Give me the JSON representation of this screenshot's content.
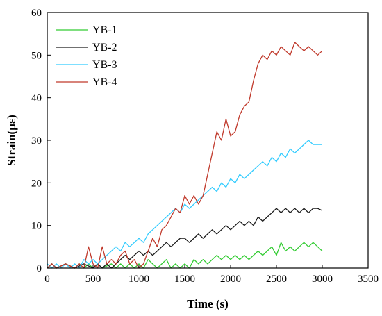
{
  "chart_data": {
    "type": "line",
    "xlabel": "Time (s)",
    "ylabel": "Strain(με)",
    "xlim": [
      0,
      3500
    ],
    "ylim": [
      0,
      60
    ],
    "xticks": [
      0,
      500,
      1000,
      1500,
      2000,
      2500,
      3000,
      3500
    ],
    "yticks": [
      0,
      10,
      20,
      30,
      40,
      50,
      60
    ],
    "grid": false,
    "legend_position": "top-left",
    "series": [
      {
        "name": "YB-1",
        "color": "#33cc33",
        "x": [
          0,
          50,
          100,
          200,
          300,
          350,
          400,
          450,
          500,
          550,
          600,
          700,
          750,
          800,
          850,
          900,
          950,
          1000,
          1050,
          1100,
          1150,
          1200,
          1250,
          1300,
          1350,
          1400,
          1450,
          1500,
          1550,
          1600,
          1650,
          1700,
          1750,
          1800,
          1850,
          1900,
          1950,
          2000,
          2050,
          2100,
          2150,
          2200,
          2250,
          2300,
          2350,
          2400,
          2450,
          2500,
          2550,
          2600,
          2650,
          2700,
          2750,
          2800,
          2850,
          2900,
          2950,
          3000
        ],
        "values": [
          0,
          1,
          0,
          1,
          0,
          1,
          0,
          1,
          0,
          1,
          0,
          1,
          0,
          1,
          0,
          1,
          0,
          1,
          0,
          2,
          1,
          0,
          1,
          2,
          0,
          1,
          0,
          1,
          0,
          2,
          1,
          2,
          1,
          2,
          3,
          2,
          3,
          2,
          3,
          2,
          3,
          2,
          3,
          4,
          3,
          4,
          5,
          3,
          6,
          4,
          5,
          4,
          5,
          6,
          5,
          6,
          5,
          4
        ]
      },
      {
        "name": "YB-2",
        "color": "#1a1a1a",
        "x": [
          0,
          50,
          100,
          200,
          300,
          400,
          500,
          550,
          600,
          650,
          700,
          750,
          800,
          850,
          900,
          950,
          1000,
          1050,
          1100,
          1150,
          1200,
          1250,
          1300,
          1350,
          1400,
          1450,
          1500,
          1550,
          1600,
          1650,
          1700,
          1750,
          1800,
          1850,
          1900,
          1950,
          2000,
          2050,
          2100,
          2150,
          2200,
          2250,
          2300,
          2350,
          2400,
          2450,
          2500,
          2550,
          2600,
          2650,
          2700,
          2750,
          2800,
          2850,
          2900,
          2950,
          3000
        ],
        "values": [
          0,
          1,
          0,
          1,
          0,
          1,
          0,
          1,
          0,
          1,
          0,
          1,
          2,
          3,
          2,
          3,
          4,
          3,
          4,
          3,
          4,
          5,
          6,
          5,
          6,
          7,
          7,
          6,
          7,
          8,
          7,
          8,
          9,
          8,
          9,
          10,
          9,
          10,
          11,
          10,
          11,
          10,
          12,
          11,
          12,
          13,
          14,
          13,
          14,
          13,
          14,
          13,
          14,
          13,
          14,
          14,
          13.5
        ]
      },
      {
        "name": "YB-3",
        "color": "#33ccff",
        "x": [
          0,
          50,
          100,
          150,
          200,
          250,
          300,
          350,
          400,
          450,
          500,
          550,
          600,
          650,
          700,
          750,
          800,
          850,
          900,
          950,
          1000,
          1050,
          1100,
          1150,
          1200,
          1250,
          1300,
          1350,
          1400,
          1450,
          1500,
          1550,
          1600,
          1650,
          1700,
          1750,
          1800,
          1850,
          1900,
          1950,
          2000,
          2050,
          2100,
          2150,
          2200,
          2250,
          2300,
          2350,
          2400,
          2450,
          2500,
          2550,
          2600,
          2650,
          2700,
          2750,
          2800,
          2850,
          2900,
          2950,
          3000
        ],
        "values": [
          1,
          0,
          1,
          0,
          1,
          0,
          1,
          0,
          2,
          1,
          2,
          1,
          2,
          3,
          4,
          5,
          4,
          6,
          5,
          6,
          7,
          6,
          8,
          9,
          10,
          11,
          12,
          13,
          14,
          13,
          15,
          14,
          15,
          16,
          17,
          18,
          19,
          18,
          20,
          19,
          21,
          20,
          22,
          21,
          22,
          23,
          24,
          25,
          24,
          26,
          25,
          27,
          26,
          28,
          27,
          28,
          29,
          30,
          29,
          29,
          29
        ]
      },
      {
        "name": "YB-4",
        "color": "#c0392b",
        "x": [
          0,
          50,
          100,
          200,
          300,
          350,
          400,
          450,
          500,
          550,
          600,
          650,
          700,
          750,
          800,
          850,
          900,
          950,
          1000,
          1050,
          1100,
          1150,
          1200,
          1250,
          1300,
          1350,
          1400,
          1450,
          1500,
          1550,
          1600,
          1650,
          1700,
          1750,
          1800,
          1850,
          1900,
          1950,
          2000,
          2050,
          2100,
          2150,
          2200,
          2250,
          2300,
          2350,
          2400,
          2450,
          2500,
          2550,
          2600,
          2650,
          2700,
          2750,
          2800,
          2850,
          2900,
          2950,
          3000
        ],
        "values": [
          0,
          1,
          0,
          1,
          0,
          1,
          0,
          5,
          1,
          0,
          5,
          1,
          2,
          1,
          3,
          4,
          1,
          2,
          0,
          1,
          4,
          7,
          5,
          9,
          10,
          12,
          14,
          13,
          17,
          15,
          17,
          15,
          17,
          22,
          27,
          32,
          30,
          35,
          31,
          32,
          36,
          38,
          39,
          44,
          48,
          50,
          49,
          51,
          50,
          52,
          51,
          50,
          53,
          52,
          51,
          52,
          51,
          50,
          51
        ]
      }
    ]
  }
}
